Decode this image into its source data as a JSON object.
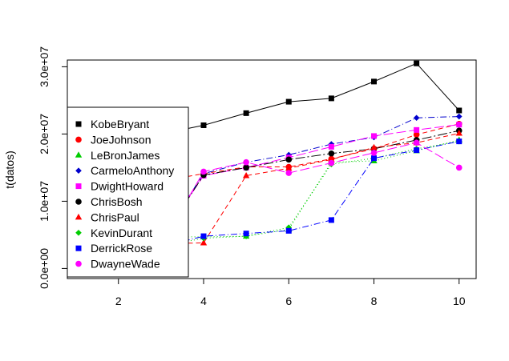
{
  "chart_data": {
    "type": "line",
    "title": "",
    "xlabel": "",
    "ylabel": "t(datos)",
    "xlim": [
      0.8,
      10.4
    ],
    "ylim": [
      -1500000,
      31000000
    ],
    "xticks": [
      2,
      4,
      6,
      8,
      10
    ],
    "xtick_labels": [
      "2",
      "4",
      "6",
      "8",
      "10"
    ],
    "yticks": [
      0,
      10000000,
      20000000,
      30000000
    ],
    "ytick_labels": [
      "0.0e+00",
      "1.0e+07",
      "2.0e+07",
      "3.0e+07"
    ],
    "grid": false,
    "legend_position": "left",
    "x": [
      1,
      2,
      3,
      4,
      5,
      6,
      7,
      8,
      9,
      10
    ],
    "series": [
      {
        "name": "KobeBryant",
        "color": "#000000",
        "marker": "square",
        "dash": "",
        "values": [
          16700000,
          18400000,
          20000000,
          21300000,
          23100000,
          24800000,
          25300000,
          27800000,
          30500000,
          23500000
        ]
      },
      {
        "name": "JoeJohnson",
        "color": "#ff0000",
        "marker": "circle",
        "dash": "6,4",
        "values": [
          12000000,
          12400000,
          13000000,
          14100000,
          15100000,
          15100000,
          16300000,
          17800000,
          19900000,
          21500000
        ]
      },
      {
        "name": "LeBronJames",
        "color": "#00cd00",
        "marker": "triangle",
        "dash": "1,3",
        "values": [
          4600000,
          4700000,
          4700000,
          4700000,
          4800000,
          5800000,
          15800000,
          16000000,
          17500000,
          19100000
        ]
      },
      {
        "name": "CarmeloAnthony",
        "color": "#0000cd",
        "marker": "diamond",
        "dash": "8,3,1,3",
        "values": [
          3700000,
          3700000,
          4300000,
          14100000,
          15800000,
          16900000,
          18500000,
          19500000,
          22400000,
          22600000
        ]
      },
      {
        "name": "DwightHoward",
        "color": "#ff00ff",
        "marker": "square",
        "dash": "12,4",
        "values": [
          4000000,
          4200000,
          4400000,
          13800000,
          15000000,
          16500000,
          18100000,
          19700000,
          20600000,
          21400000
        ]
      },
      {
        "name": "ChrisBosh",
        "color": "#000000",
        "marker": "circle",
        "dash": "12,3,2,3",
        "values": [
          3800000,
          4000000,
          4200000,
          13900000,
          15000000,
          16200000,
          17100000,
          17800000,
          19100000,
          20500000
        ]
      },
      {
        "name": "ChrisPaul",
        "color": "#ff0000",
        "marker": "triangle",
        "dash": "6,4",
        "values": [
          3200000,
          3600000,
          3700000,
          3800000,
          13800000,
          14900000,
          16200000,
          18000000,
          18700000,
          20100000
        ]
      },
      {
        "name": "KevinDurant",
        "color": "#00cd00",
        "marker": "diamond",
        "dash": "1,3",
        "values": [
          3200000,
          3200000,
          3300000,
          4500000,
          4800000,
          6100000,
          15500000,
          16400000,
          17800000,
          18900000
        ]
      },
      {
        "name": "DerrickRose",
        "color": "#0000ff",
        "marker": "square",
        "dash": "8,3,1,3",
        "values": [
          3000000,
          3100000,
          3200000,
          4800000,
          5200000,
          5600000,
          7200000,
          16400000,
          17600000,
          18900000
        ]
      },
      {
        "name": "DwayneWade",
        "color": "#ff00ff",
        "marker": "circle",
        "dash": "12,4",
        "values": [
          3800000,
          3900000,
          3500000,
          14400000,
          15800000,
          14200000,
          15700000,
          17200000,
          18700000,
          15000000
        ]
      }
    ]
  }
}
